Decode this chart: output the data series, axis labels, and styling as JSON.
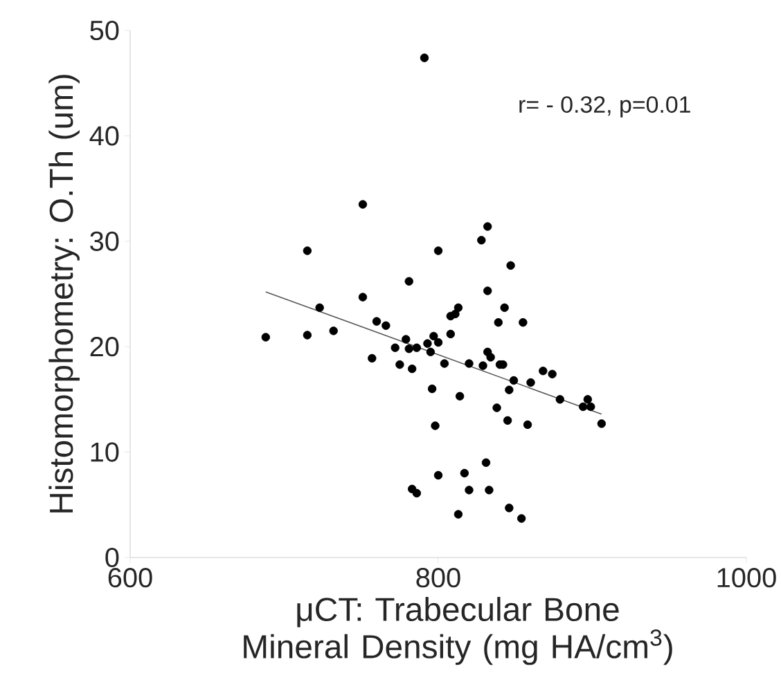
{
  "chart_data": {
    "type": "scatter",
    "xlabel": "μCT:  Trabecular Bone Mineral Density (mg HA/cm$^{3}$)",
    "ylabel": "Histomorphometry:  O.Th (um)",
    "annotations": [
      "r= - 0.32, p=0.01"
    ],
    "xlim": [
      600,
      1000
    ],
    "xticks": [
      600,
      800,
      1000
    ],
    "ylim": [
      0,
      50
    ],
    "yticks": [
      0,
      10,
      20,
      30,
      40,
      50
    ],
    "series": [
      {
        "color": "#000000",
        "marker": "circle",
        "x": [
          688,
          715,
          715,
          723,
          732,
          751,
          751,
          757,
          760,
          766,
          772,
          775,
          779,
          781,
          781,
          783,
          783,
          786,
          786,
          791,
          793,
          795,
          796,
          797,
          798,
          800,
          800,
          800,
          804,
          808,
          808,
          811,
          813,
          814,
          813,
          817,
          820,
          820,
          828,
          829,
          832,
          831,
          832,
          832,
          834,
          833,
          838,
          839,
          840,
          842,
          843,
          845,
          846,
          846,
          847,
          849,
          854,
          855,
          858,
          860,
          868,
          874,
          879,
          894,
          897,
          899,
          906
        ],
        "values": [
          20.9,
          29.1,
          21.1,
          23.7,
          21.5,
          33.5,
          24.7,
          18.9,
          22.4,
          22.0,
          19.9,
          18.3,
          20.7,
          26.2,
          19.8,
          17.9,
          6.5,
          6.1,
          19.9,
          47.4,
          20.3,
          19.5,
          16.0,
          21.0,
          12.5,
          20.4,
          7.8,
          29.1,
          18.4,
          21.2,
          22.9,
          23.1,
          23.7,
          15.3,
          4.1,
          8.0,
          18.4,
          6.4,
          30.1,
          18.2,
          31.4,
          9.0,
          25.3,
          19.5,
          19.0,
          6.4,
          14.2,
          22.3,
          18.3,
          18.3,
          23.7,
          13.0,
          15.9,
          4.7,
          27.7,
          16.8,
          3.7,
          22.3,
          12.6,
          16.6,
          17.7,
          17.4,
          15.0,
          14.3,
          15.0,
          14.3,
          12.7
        ]
      },
      {
        "type": "line",
        "color": "#595959",
        "marker": "none",
        "line_style": "solid",
        "x": [
          688,
          906
        ],
        "values": [
          25.2,
          13.6
        ]
      }
    ]
  }
}
